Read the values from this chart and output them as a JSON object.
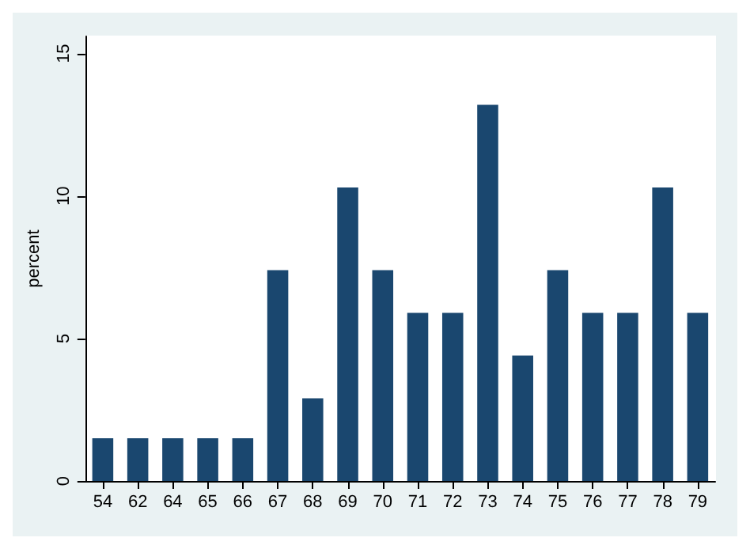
{
  "chart_data": {
    "type": "bar",
    "ylabel": "percent",
    "categories": [
      "54",
      "62",
      "64",
      "65",
      "66",
      "67",
      "68",
      "69",
      "70",
      "71",
      "72",
      "73",
      "74",
      "75",
      "76",
      "77",
      "78",
      "79"
    ],
    "values": [
      1.5,
      1.5,
      1.5,
      1.5,
      1.5,
      7.4,
      2.9,
      10.3,
      7.4,
      5.9,
      5.9,
      13.2,
      4.4,
      7.4,
      5.9,
      5.9,
      10.3,
      5.9
    ],
    "color": "#1a476f",
    "ylim": [
      0,
      15.6
    ],
    "yticks": [
      0,
      5,
      10,
      15
    ],
    "grid": false
  }
}
